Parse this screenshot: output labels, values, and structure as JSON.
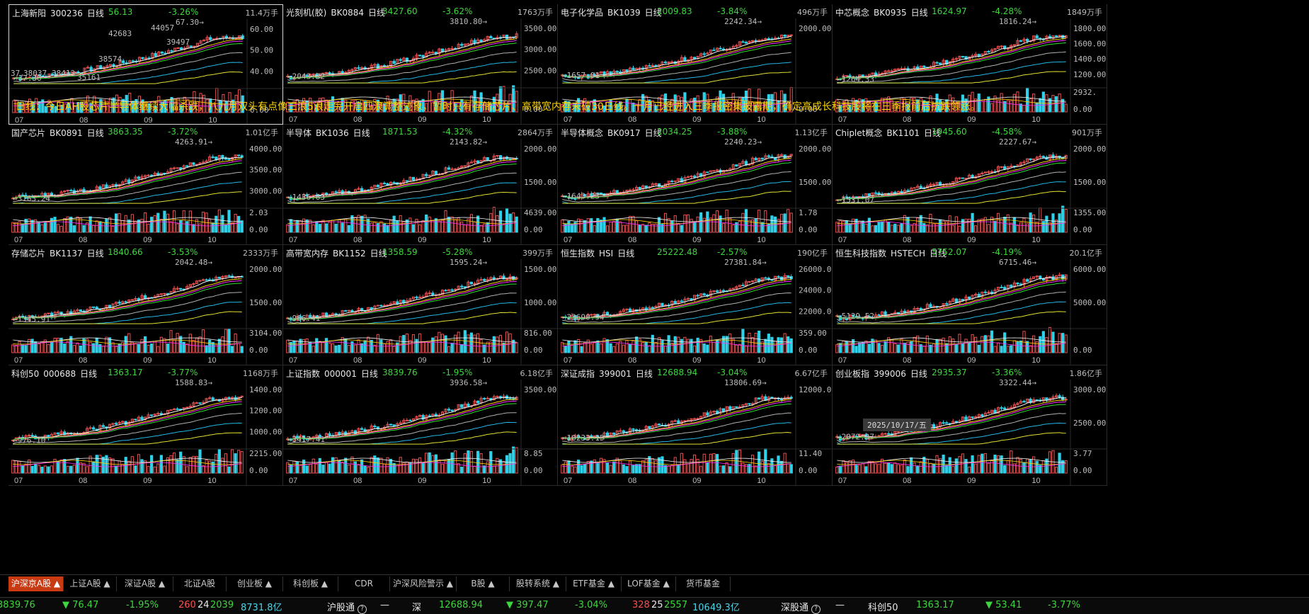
{
  "colors": {
    "up": "#ff4d4d",
    "down": "#3ed63e",
    "candle_up": "#e85050",
    "candle_down": "#2fd1e8",
    "ma5": "#f5f5f5",
    "ma10": "#ffd400",
    "ma20": "#ff2dff",
    "ma30": "#2ee02e",
    "ma60": "#b0b0b0",
    "ma120": "#22b7e6",
    "ma250": "#e0e030",
    "active_tab": "#c83a12"
  },
  "note": "日线：今日AH股芯片半导体继续大幅杀跌，八九月双头有点像三浪5浪走完开启四浪调整迹象，暂时只有存储芯片、高带宽内存未破30日线。十月已经进入三季报密集披露期，确定高成长科技股将在三季报前后抗跌领涨。",
  "date_label": "2025/10/17/五",
  "months": [
    "07",
    "08",
    "09",
    "10"
  ],
  "panels": [
    {
      "name": "上海新阳",
      "code": "300236",
      "period": "日线",
      "price": "56.13",
      "change": "-3.26%",
      "volume": "11.4万手",
      "selected": true,
      "high_label": "67.30",
      "low_label": "37.30",
      "axis": [
        "60.00",
        "50.00",
        "40.00"
      ],
      "vol_axis": [
        "0.00"
      ],
      "extra": [
        "42683",
        "44057",
        "38574",
        "39497",
        "38037",
        "38413",
        "37.",
        "35161"
      ]
    },
    {
      "name": "光刻机(胶)",
      "code": "BK0884",
      "period": "日线",
      "price": "3427.60",
      "change": "-3.62%",
      "volume": "1763万手",
      "high_label": "3810.80",
      "low_label": "2043.32",
      "axis": [
        "3500.00",
        "3000.00",
        "2500.00"
      ],
      "vol_axis": [
        "0.00"
      ]
    },
    {
      "name": "电子化学品",
      "code": "BK1039",
      "period": "日线",
      "price": "2009.83",
      "change": "-3.84%",
      "volume": "496万手",
      "high_label": "2242.34",
      "low_label": "1657.01",
      "axis": [
        "2000.00"
      ],
      "vol_axis": [
        "0.00"
      ]
    },
    {
      "name": "中芯概念",
      "code": "BK0935",
      "period": "日线",
      "price": "1624.97",
      "change": "-4.28%",
      "volume": "1849万手",
      "high_label": "1816.24",
      "low_label": "1264.33",
      "axis": [
        "1800.00",
        "1600.00",
        "1400.00",
        "1200.00"
      ],
      "vol_axis": [
        "2932.",
        "0.00"
      ]
    },
    {
      "name": "国产芯片",
      "code": "BK0891",
      "period": "日线",
      "price": "3863.35",
      "change": "-3.72%",
      "volume": "1.01亿手",
      "high_label": "4263.91",
      "low_label": "3163.24",
      "axis": [
        "4000.00",
        "3500.00",
        "3000.00"
      ],
      "vol_axis": [
        "2.03",
        "0.00"
      ]
    },
    {
      "name": "半导体",
      "code": "BK1036",
      "period": "日线",
      "price": "1871.53",
      "change": "-4.32%",
      "volume": "2864万手",
      "high_label": "2143.82",
      "low_label": "1436.63",
      "axis": [
        "2000.00",
        "1500.00"
      ],
      "vol_axis": [
        "4639.00",
        "0.00"
      ]
    },
    {
      "name": "半导体概念",
      "code": "BK0917",
      "period": "日线",
      "price": "2034.25",
      "change": "-3.88%",
      "volume": "1.13亿手",
      "high_label": "2240.23",
      "low_label": "1643.23",
      "axis": [
        "2000.00",
        "1500.00"
      ],
      "vol_axis": [
        "1.78",
        "0.00"
      ]
    },
    {
      "name": "Chiplet概念",
      "code": "BK1101",
      "period": "日线",
      "price": "1945.60",
      "change": "-4.58%",
      "volume": "901万手",
      "high_label": "2227.67",
      "low_label": "1531.07",
      "axis": [
        "2000.00",
        "1500.00"
      ],
      "vol_axis": [
        "1355.00",
        "0.00"
      ]
    },
    {
      "name": "存储芯片",
      "code": "BK1137",
      "period": "日线",
      "price": "1840.66",
      "change": "-3.53%",
      "volume": "2333万手",
      "high_label": "2042.48",
      "low_label": "1345.91",
      "axis": [
        "2000.00",
        "1500.00"
      ],
      "vol_axis": [
        "3104.00",
        "0.00"
      ]
    },
    {
      "name": "高带宽内存",
      "code": "BK1152",
      "period": "日线",
      "price": "1358.59",
      "change": "-5.28%",
      "volume": "399万手",
      "high_label": "1595.24",
      "low_label": "966.41",
      "axis": [
        "1500.00",
        "1000.00"
      ],
      "vol_axis": [
        "816.00",
        "0.00"
      ]
    },
    {
      "name": "恒生指数",
      "code": "HSI",
      "period": "日线",
      "price": "25222.48",
      "change": "-2.57%",
      "volume": "190亿手",
      "high_label": "27381.84",
      "low_label": "23690.94",
      "axis": [
        "26000.0",
        "24000.0",
        "22000.0"
      ],
      "vol_axis": [
        "359.00",
        "0.00"
      ]
    },
    {
      "name": "恒生科技指数",
      "code": "HSTECH",
      "period": "日线",
      "price": "5752.07",
      "change": "-4.19%",
      "volume": "20.1亿手",
      "high_label": "6715.46",
      "low_label": "5129.52",
      "axis": [
        "6000.00",
        "5000.00"
      ],
      "vol_axis": [
        "0.00"
      ]
    },
    {
      "name": "科创50",
      "code": "000688",
      "period": "日线",
      "price": "1363.17",
      "change": "-3.77%",
      "volume": "1168万手",
      "high_label": "1588.83",
      "low_label": "976.10",
      "axis": [
        "1400.00",
        "1200.00",
        "1000.00"
      ],
      "vol_axis": [
        "2215.00",
        "0.00"
      ]
    },
    {
      "name": "上证指数",
      "code": "000001",
      "period": "日线",
      "price": "3839.76",
      "change": "-1.95%",
      "volume": "6.18亿手",
      "high_label": "3936.58",
      "low_label": "3417.41",
      "axis": [
        "3500.00"
      ],
      "vol_axis": [
        "8.85",
        "0.00"
      ]
    },
    {
      "name": "深证成指",
      "code": "399001",
      "period": "日线",
      "price": "12688.94",
      "change": "-3.04%",
      "volume": "6.67亿手",
      "high_label": "13806.69",
      "low_label": "10233.15",
      "axis": [
        "12000.0"
      ],
      "vol_axis": [
        "11.40",
        "0.00"
      ]
    },
    {
      "name": "创业板指",
      "code": "399006",
      "period": "日线",
      "price": "2935.37",
      "change": "-3.36%",
      "volume": "1.86亿手",
      "high_label": "3322.44",
      "low_label": "2072.37",
      "axis": [
        "3000.00",
        "2500.00"
      ],
      "vol_axis": [
        "3.77",
        "0.00"
      ]
    }
  ],
  "tabs": [
    "沪深京A股 ▲",
    "上证A股 ▲",
    "深证A股 ▲",
    "北证A股",
    "创业板 ▲",
    "科创板 ▲",
    "CDR",
    "沪深风险警示 ▲",
    "B股 ▲",
    "股转系统 ▲",
    "ETF基金 ▲",
    "LOF基金 ▲",
    "货币基金"
  ],
  "status": {
    "sh_index": "3839.76",
    "sh_change": "▼ 76.47",
    "sh_pct": "-1.95%",
    "sh_up": "260",
    "sh_flat": "24",
    "sh_down": "2039",
    "sh_amount": "8731.8亿",
    "hgt": "沪股通",
    "hgt_val": "—",
    "sz_label": "深",
    "sz_index": "12688.94",
    "sz_change": "▼ 397.47",
    "sz_pct": "-3.04%",
    "sz_up": "328",
    "sz_flat": "25",
    "sz_down": "2557",
    "sz_amount": "10649.3亿",
    "sgt": "深股通",
    "sgt_val": "—",
    "kc_label": "科创50",
    "kc_index": "1363.17",
    "kc_change": "▼ 53.41",
    "kc_pct": "-3.77%"
  }
}
